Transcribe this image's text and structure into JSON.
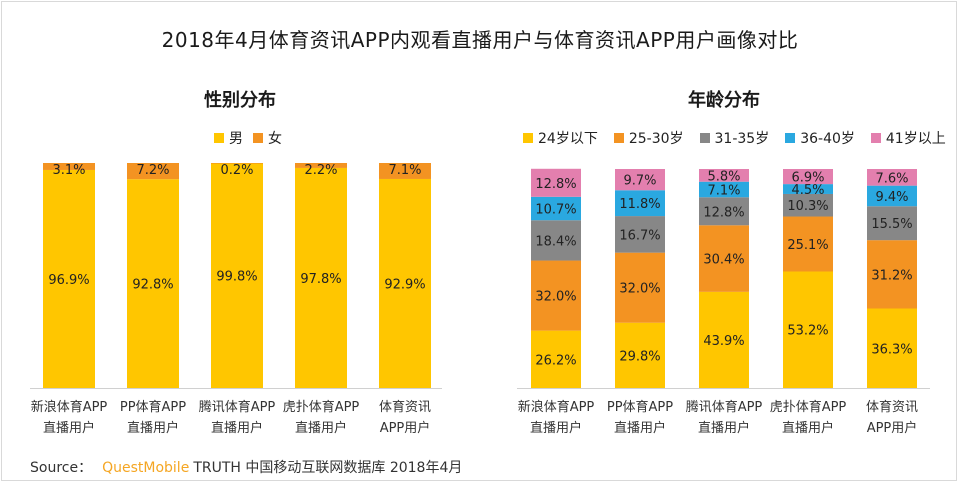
{
  "title": "2018年4月体育资讯APP内观看直播用户与体育资讯APP用户画像对比",
  "source": {
    "label": "Source：",
    "brand": "QuestMobile",
    "text": "TRUTH 中国移动互联网数据库 2018年4月"
  },
  "colors": {
    "male": "#ffc600",
    "female": "#f39322",
    "under24": "#ffc600",
    "age25_30": "#f39322",
    "age31_35": "#878787",
    "age36_40": "#2aa8e0",
    "age41plus": "#e37fae"
  },
  "chart_data": [
    {
      "type": "bar",
      "stacked": true,
      "title": "性别分布",
      "categories": [
        [
          "新浪体育APP",
          "直播用户"
        ],
        [
          "PP体育APP",
          "直播用户"
        ],
        [
          "腾讯体育APP",
          "直播用户"
        ],
        [
          "虎扑体育APP",
          "直播用户"
        ],
        [
          "体育资讯",
          "APP用户"
        ]
      ],
      "series": [
        {
          "name": "男",
          "color_key": "male",
          "values": [
            96.9,
            92.8,
            99.8,
            97.8,
            92.9
          ],
          "labels": [
            "96.9%",
            "92.8%",
            "99.8%",
            "97.8%",
            "92.9%"
          ]
        },
        {
          "name": "女",
          "color_key": "female",
          "values": [
            3.1,
            7.2,
            0.2,
            2.2,
            7.1
          ],
          "labels": [
            "3.1%",
            "7.2%",
            "0.2%",
            "2.2%",
            "7.1%"
          ]
        }
      ],
      "ylim": [
        0,
        100
      ],
      "legend": "top-center"
    },
    {
      "type": "bar",
      "stacked": true,
      "title": "年龄分布",
      "categories": [
        [
          "新浪体育APP",
          "直播用户"
        ],
        [
          "PP体育APP",
          "直播用户"
        ],
        [
          "腾讯体育APP",
          "直播用户"
        ],
        [
          "虎扑体育APP",
          "直播用户"
        ],
        [
          "体育资讯",
          "APP用户"
        ]
      ],
      "series": [
        {
          "name": "24岁以下",
          "color_key": "under24",
          "values": [
            26.2,
            29.8,
            43.9,
            53.2,
            36.3
          ],
          "labels": [
            "26.2%",
            "29.8%",
            "43.9%",
            "53.2%",
            "36.3%"
          ]
        },
        {
          "name": "25-30岁",
          "color_key": "age25_30",
          "values": [
            32.0,
            32.0,
            30.4,
            25.1,
            31.2
          ],
          "labels": [
            "32.0%",
            "32.0%",
            "30.4%",
            "25.1%",
            "31.2%"
          ]
        },
        {
          "name": "31-35岁",
          "color_key": "age31_35",
          "values": [
            18.4,
            16.7,
            12.8,
            10.3,
            15.5
          ],
          "labels": [
            "18.4%",
            "16.7%",
            "12.8%",
            "10.3%",
            "15.5%"
          ]
        },
        {
          "name": "36-40岁",
          "color_key": "age36_40",
          "values": [
            10.7,
            11.8,
            7.1,
            4.5,
            9.4
          ],
          "labels": [
            "10.7%",
            "11.8%",
            "7.1%",
            "4.5%",
            "9.4%"
          ]
        },
        {
          "name": "41岁以上",
          "color_key": "age41plus",
          "values": [
            12.8,
            9.7,
            5.8,
            6.9,
            7.6
          ],
          "labels": [
            "12.8%",
            "9.7%",
            "5.8%",
            "6.9%",
            "7.6%"
          ]
        }
      ],
      "ylim": [
        0,
        100
      ],
      "legend": "top-center"
    }
  ]
}
